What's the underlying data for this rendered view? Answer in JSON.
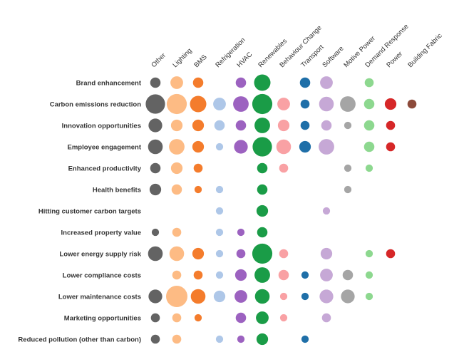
{
  "chart_data": {
    "type": "bubble-matrix",
    "title": "",
    "xlabel": "",
    "ylabel": "",
    "columns": [
      {
        "name": "Other",
        "color": "#636363"
      },
      {
        "name": "Lighting",
        "color": "#fdbb84"
      },
      {
        "name": "BMS",
        "color": "#f47c2c"
      },
      {
        "name": "Refrigeration",
        "color": "#aec7e8"
      },
      {
        "name": "HVAC",
        "color": "#9c62c0"
      },
      {
        "name": "Renewables",
        "color": "#1a9c47"
      },
      {
        "name": "Behaviour Change",
        "color": "#f9a1a4"
      },
      {
        "name": "Transport",
        "color": "#1f6fa8"
      },
      {
        "name": "Software",
        "color": "#c6a8d6"
      },
      {
        "name": "Motive Power",
        "color": "#a5a5a5"
      },
      {
        "name": "Demand Response",
        "color": "#8dd88f"
      },
      {
        "name": "Power",
        "color": "#d62728"
      },
      {
        "name": "Building Fabric",
        "color": "#8c4a3a"
      }
    ],
    "rows": [
      "Brand enhancement",
      "Carbon emissions reduction",
      "Innovation opportunities",
      "Employee engagement",
      "Enhanced productivity",
      "Health benefits",
      "Hitting customer carbon targets",
      "Increased property value",
      "Lower energy supply risk",
      "Lower compliance costs",
      "Lower maintenance costs",
      "Marketing opportunities",
      "Reduced pollution (other than carbon)"
    ],
    "values": [
      [
        4,
        6,
        4,
        0,
        4,
        10,
        0,
        4,
        6,
        0,
        3,
        0,
        0
      ],
      [
        14,
        15,
        10,
        6,
        9,
        15,
        6,
        3,
        8,
        9,
        4,
        5,
        3
      ],
      [
        7,
        5,
        5,
        4,
        4,
        9,
        5,
        3,
        4,
        2,
        4,
        3,
        0
      ],
      [
        8,
        9,
        5,
        2,
        7,
        14,
        8,
        5,
        9,
        0,
        4,
        3,
        0
      ],
      [
        4,
        5,
        3,
        0,
        0,
        4,
        3,
        0,
        0,
        2,
        2,
        0,
        0
      ],
      [
        5,
        4,
        2,
        2,
        0,
        4,
        0,
        0,
        0,
        2,
        0,
        0,
        0
      ],
      [
        0,
        0,
        0,
        2,
        0,
        5,
        0,
        0,
        2,
        0,
        0,
        0,
        0
      ],
      [
        2,
        3,
        0,
        2,
        2,
        4,
        0,
        0,
        0,
        0,
        0,
        0,
        0
      ],
      [
        8,
        8,
        5,
        2,
        3,
        15,
        3,
        0,
        5,
        0,
        2,
        3,
        0
      ],
      [
        0,
        3,
        3,
        2,
        5,
        9,
        4,
        2,
        6,
        4,
        2,
        0,
        0
      ],
      [
        7,
        17,
        8,
        5,
        6,
        8,
        2,
        2,
        7,
        7,
        2,
        0,
        0
      ],
      [
        3,
        3,
        2,
        0,
        4,
        6,
        2,
        0,
        3,
        0,
        0,
        0,
        0
      ],
      [
        3,
        3,
        0,
        2,
        2,
        5,
        0,
        2,
        0,
        0,
        0,
        0,
        0
      ]
    ],
    "grid": false,
    "legend": "none"
  }
}
